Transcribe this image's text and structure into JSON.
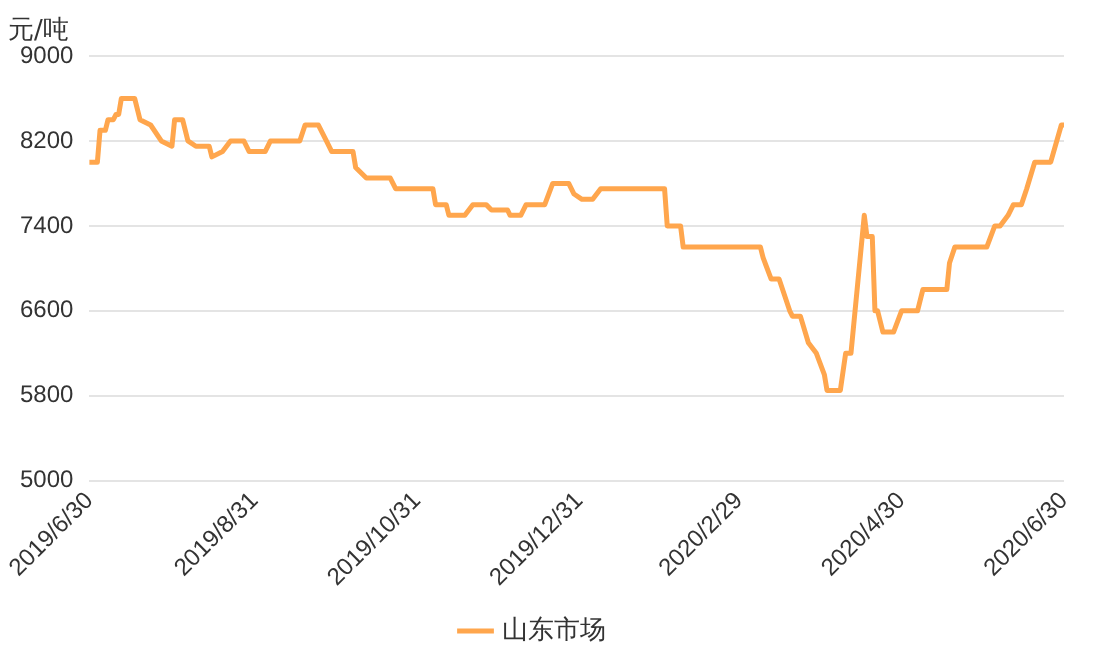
{
  "chart_data": {
    "type": "line",
    "ylabel": "元/吨",
    "xlim": [
      "2019-06-30",
      "2020-06-30"
    ],
    "xticks": [
      {
        "value": "2019-06-30",
        "label": "2019/6/30"
      },
      {
        "value": "2019-08-31",
        "label": "2019/8/31"
      },
      {
        "value": "2019-10-31",
        "label": "2019/10/31"
      },
      {
        "value": "2019-12-31",
        "label": "2019/12/31"
      },
      {
        "value": "2020-02-29",
        "label": "2020/2/29"
      },
      {
        "value": "2020-04-30",
        "label": "2020/4/30"
      },
      {
        "value": "2020-06-30",
        "label": "2020/6/30"
      }
    ],
    "ylim": [
      5000,
      9000
    ],
    "yticks": [
      5000,
      5800,
      6600,
      7400,
      8200,
      9000
    ],
    "grid": "y",
    "legend": "bottom",
    "marker": "none",
    "line_style": "solid",
    "series": [
      {
        "name": "山东市场",
        "color": "#ffa64d",
        "x": [
          "2019-06-30",
          "2019-07-03",
          "2019-07-04",
          "2019-07-06",
          "2019-07-07",
          "2019-07-09",
          "2019-07-10",
          "2019-07-11",
          "2019-07-12",
          "2019-07-17",
          "2019-07-19",
          "2019-07-23",
          "2019-07-27",
          "2019-07-31",
          "2019-08-01",
          "2019-08-02",
          "2019-08-04",
          "2019-08-06",
          "2019-08-09",
          "2019-08-14",
          "2019-08-15",
          "2019-08-19",
          "2019-08-22",
          "2019-08-27",
          "2019-08-29",
          "2019-09-04",
          "2019-09-06",
          "2019-09-17",
          "2019-09-19",
          "2019-09-24",
          "2019-09-27",
          "2019-09-29",
          "2019-10-07",
          "2019-10-08",
          "2019-10-12",
          "2019-10-21",
          "2019-10-23",
          "2019-11-06",
          "2019-11-07",
          "2019-11-11",
          "2019-11-12",
          "2019-11-18",
          "2019-11-21",
          "2019-11-26",
          "2019-11-28",
          "2019-12-04",
          "2019-12-05",
          "2019-12-09",
          "2019-12-11",
          "2019-12-18",
          "2019-12-21",
          "2019-12-27",
          "2019-12-29",
          "2020-01-01",
          "2020-01-05",
          "2020-01-08",
          "2020-02-01",
          "2020-02-02",
          "2020-02-07",
          "2020-02-08",
          "2020-03-08",
          "2020-03-09",
          "2020-03-12",
          "2020-03-15",
          "2020-03-19",
          "2020-03-20",
          "2020-03-23",
          "2020-03-26",
          "2020-03-29",
          "2020-04-01",
          "2020-04-02",
          "2020-04-07",
          "2020-04-09",
          "2020-04-11",
          "2020-04-16",
          "2020-04-17",
          "2020-04-19",
          "2020-04-20",
          "2020-04-21",
          "2020-04-23",
          "2020-04-27",
          "2020-04-30",
          "2020-05-06",
          "2020-05-08",
          "2020-05-17",
          "2020-05-18",
          "2020-05-20",
          "2020-06-01",
          "2020-06-04",
          "2020-06-06",
          "2020-06-09",
          "2020-06-11",
          "2020-06-14",
          "2020-06-16",
          "2020-06-19",
          "2020-06-25",
          "2020-06-29",
          "2020-06-30"
        ],
        "values": [
          8000,
          8000,
          8300,
          8300,
          8400,
          8400,
          8450,
          8450,
          8600,
          8600,
          8400,
          8350,
          8200,
          8150,
          8400,
          8400,
          8400,
          8200,
          8150,
          8150,
          8050,
          8100,
          8200,
          8200,
          8100,
          8100,
          8200,
          8200,
          8350,
          8350,
          8200,
          8100,
          8100,
          7950,
          7850,
          7850,
          7750,
          7750,
          7600,
          7600,
          7500,
          7500,
          7600,
          7600,
          7550,
          7550,
          7500,
          7500,
          7600,
          7600,
          7800,
          7800,
          7700,
          7650,
          7650,
          7750,
          7750,
          7400,
          7400,
          7200,
          7200,
          7100,
          6900,
          6900,
          6600,
          6550,
          6550,
          6300,
          6200,
          6000,
          5850,
          5850,
          6200,
          6200,
          7500,
          7300,
          7300,
          6600,
          6600,
          6400,
          6400,
          6600,
          6600,
          6800,
          6800,
          7050,
          7200,
          7200,
          7400,
          7400,
          7500,
          7600,
          7600,
          7750,
          8000,
          8000,
          8350,
          8350
        ]
      }
    ]
  }
}
